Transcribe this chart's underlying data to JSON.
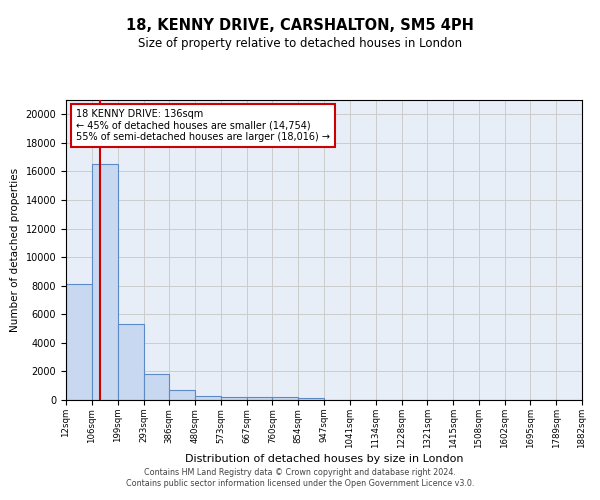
{
  "title1": "18, KENNY DRIVE, CARSHALTON, SM5 4PH",
  "title2": "Size of property relative to detached houses in London",
  "xlabel": "Distribution of detached houses by size in London",
  "ylabel": "Number of detached properties",
  "bin_labels": [
    "12sqm",
    "106sqm",
    "199sqm",
    "293sqm",
    "386sqm",
    "480sqm",
    "573sqm",
    "667sqm",
    "760sqm",
    "854sqm",
    "947sqm",
    "1041sqm",
    "1134sqm",
    "1228sqm",
    "1321sqm",
    "1415sqm",
    "1508sqm",
    "1602sqm",
    "1695sqm",
    "1789sqm",
    "1882sqm"
  ],
  "bin_edges_numeric": [
    12,
    106,
    199,
    293,
    386,
    480,
    573,
    667,
    760,
    854,
    947,
    1041,
    1134,
    1228,
    1321,
    1415,
    1508,
    1602,
    1695,
    1789,
    1882
  ],
  "bar_heights": [
    8100,
    16500,
    5300,
    1850,
    700,
    300,
    220,
    200,
    190,
    150,
    0,
    0,
    0,
    0,
    0,
    0,
    0,
    0,
    0,
    0
  ],
  "bar_color": "#c8d8f0",
  "bar_edge_color": "#5b8ac5",
  "property_line_x": 136,
  "property_line_label": "18 KENNY DRIVE: 136sqm",
  "annotation_line1": "← 45% of detached houses are smaller (14,754)",
  "annotation_line2": "55% of semi-detached houses are larger (18,016) →",
  "annotation_box_color": "#ffffff",
  "annotation_box_edge": "#cc0000",
  "red_line_color": "#cc0000",
  "ylim": [
    0,
    21000
  ],
  "yticks": [
    0,
    2000,
    4000,
    6000,
    8000,
    10000,
    12000,
    14000,
    16000,
    18000,
    20000
  ],
  "grid_color": "#cccccc",
  "bg_color": "#e8eef8",
  "footer1": "Contains HM Land Registry data © Crown copyright and database right 2024.",
  "footer2": "Contains public sector information licensed under the Open Government Licence v3.0."
}
